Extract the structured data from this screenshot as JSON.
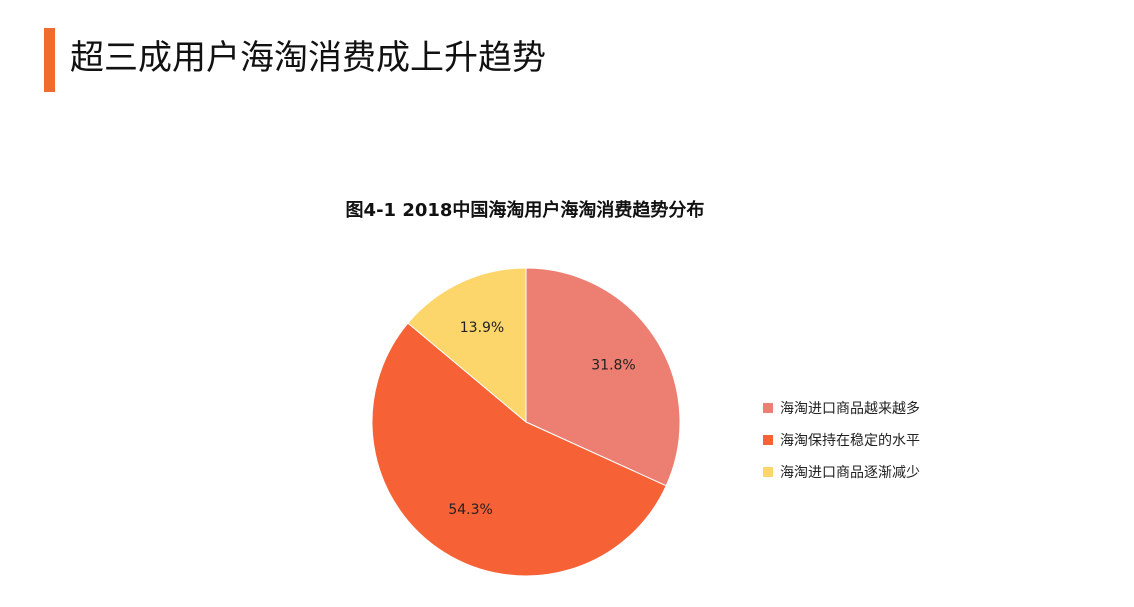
{
  "header": {
    "title": "超三成用户海淘消费成上升趋势",
    "accent_color": "#f26a2e"
  },
  "chart_data": {
    "type": "pie",
    "title": "图4-1 2018中国海淘用户海淘消费趋势分布",
    "start": "top",
    "direction": "clockwise",
    "legend_position": "right",
    "slices": [
      {
        "label": "海淘进口商品越来越多",
        "value": 31.8,
        "value_label": "31.8%",
        "color": "#ed7f72"
      },
      {
        "label": "海淘保持在稳定的水平",
        "value": 54.3,
        "value_label": "54.3%",
        "color": "#f76136"
      },
      {
        "label": "海淘进口商品逐渐减少",
        "value": 13.9,
        "value_label": "13.9%",
        "color": "#fcd66a"
      }
    ]
  }
}
